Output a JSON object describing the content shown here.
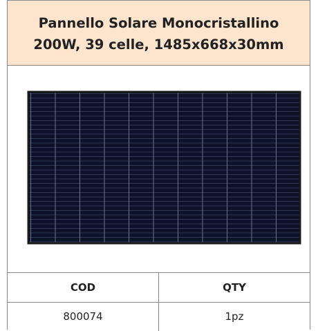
{
  "header": {
    "title_lines": [
      "Pannello Solare Monocristallino",
      "200W, 39 celle, 1485x668x30mm"
    ]
  },
  "table": {
    "columns": [
      "COD",
      "QTY"
    ],
    "rows": [
      [
        "800074",
        "1pz"
      ]
    ]
  }
}
